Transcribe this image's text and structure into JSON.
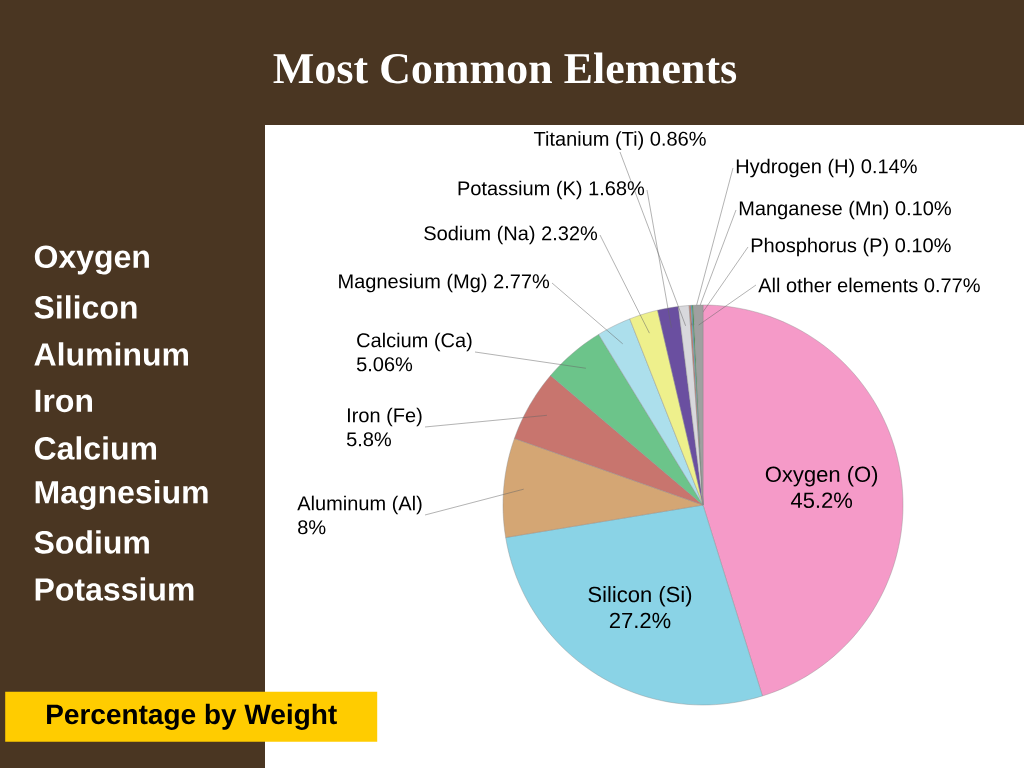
{
  "chart_data": {
    "type": "pie",
    "title": "Most Common Elements",
    "categories": [
      "Oxygen (O)",
      "Silicon (Si)",
      "Aluminum (Al)",
      "Iron (Fe)",
      "Calcium (Ca)",
      "Magnesium (Mg)",
      "Sodium (Na)",
      "Potassium (K)",
      "Titanium (Ti)",
      "Hydrogen (H)",
      "Manganese (Mn)",
      "Phosphorus (P)",
      "All other elements"
    ],
    "values": [
      45.2,
      27.2,
      8,
      5.8,
      5.06,
      2.77,
      2.32,
      1.68,
      0.86,
      0.14,
      0.1,
      0.1,
      0.77
    ],
    "value_labels": [
      "45.2%",
      "27.2%",
      "8%",
      "5.8%",
      "5.06%",
      "2.77%",
      "2.32%",
      "1.68%",
      "0.86%",
      "0.14%",
      "0.10%",
      "0.10%",
      "0.77%"
    ],
    "colors": [
      "#f59ac8",
      "#8ad3e6",
      "#d4a674",
      "#c8756e",
      "#6cc48a",
      "#acdfec",
      "#eef08c",
      "#6a4fa0",
      "#d8d8dc",
      "#c87a6a",
      "#4aa0d0",
      "#2a9a3a",
      "#a0a0a0"
    ],
    "annotations": [
      "Oxygen",
      "Silicon",
      "Aluminum",
      "Iron",
      "Calcium",
      "Magnesium",
      "Sodium",
      "Potassium",
      "Percentage by Weight"
    ]
  }
}
